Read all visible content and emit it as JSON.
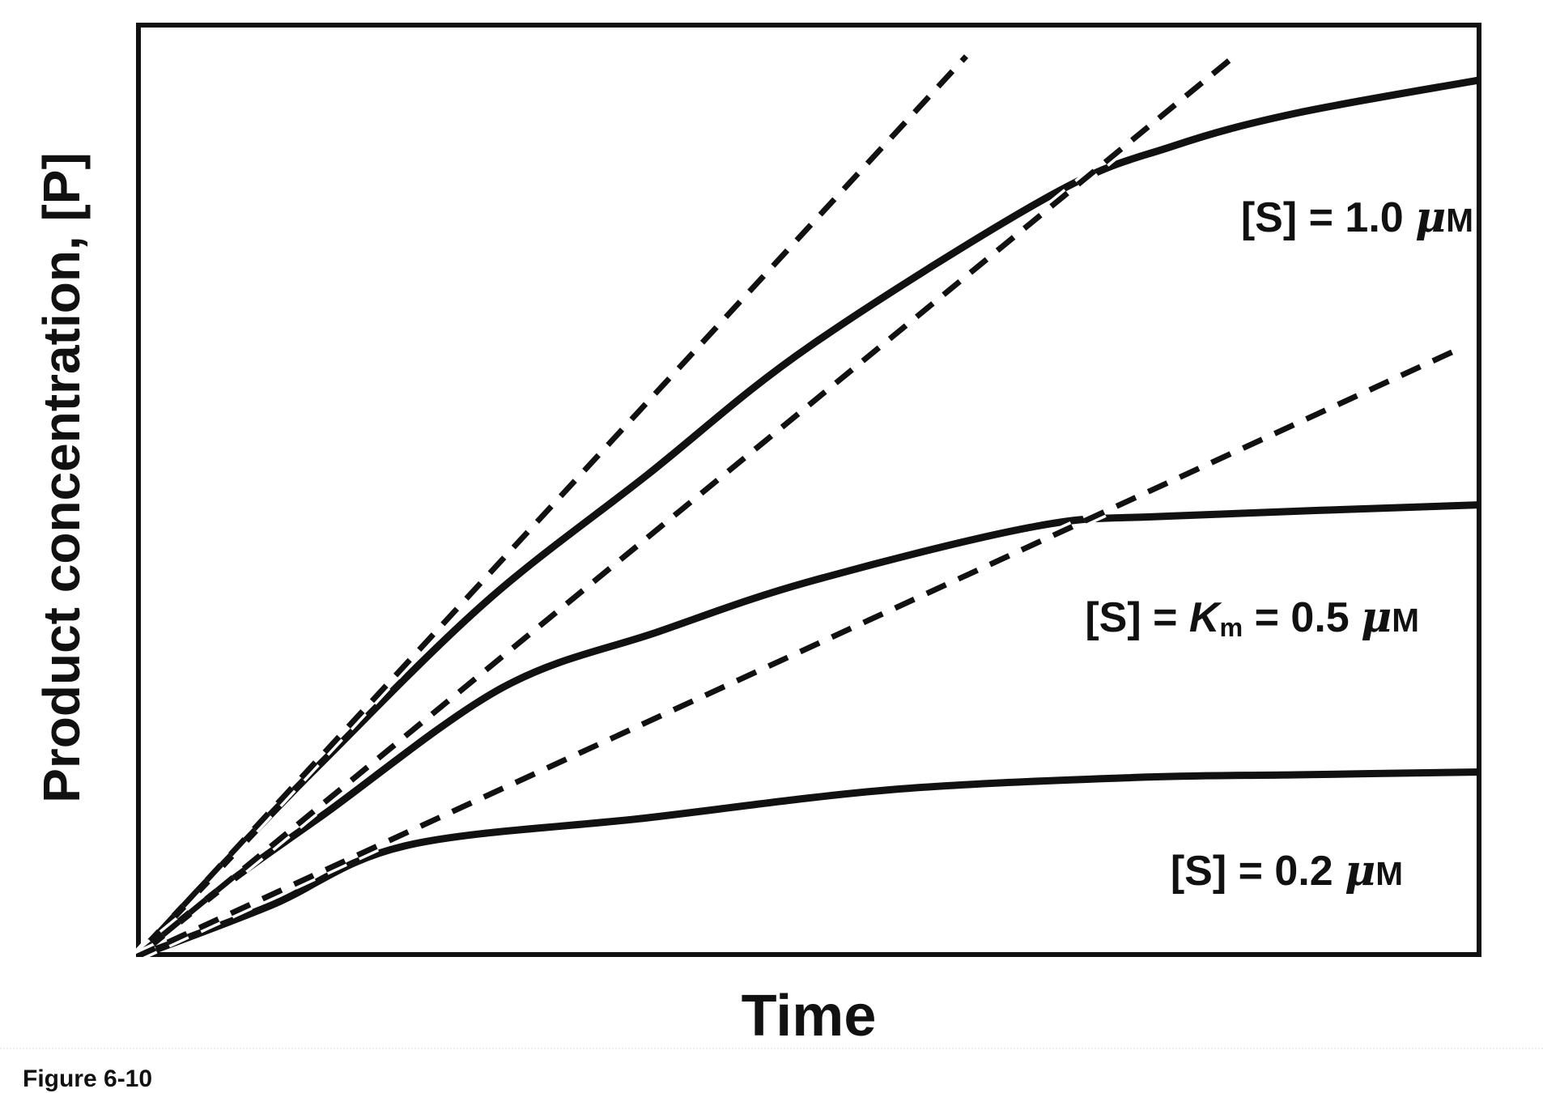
{
  "figure": {
    "caption": "Figure 6-10",
    "x_axis_label": "Time",
    "y_axis_label": "Product concentration, [P]"
  },
  "labels": {
    "s10": {
      "pre": "[S] = 1.0 ",
      "mu": "μ",
      "M": "M"
    },
    "s05": {
      "pre": "[S] = ",
      "K": "K",
      "sub": "m",
      "mid": " = 0.5 ",
      "mu": "μ",
      "M": "M"
    },
    "s02": {
      "pre": "[S] = 0.2 ",
      "mu": "μ",
      "M": "M"
    }
  },
  "colors": {
    "ink": "#111111",
    "background": "#ffffff",
    "artifact_line": "#ececec"
  },
  "chart_data": {
    "type": "line",
    "title": "",
    "xlabel": "Time",
    "ylabel": "Product concentration, [P]",
    "axes": {
      "x": {
        "label": "Time",
        "ticks": [],
        "range": [
          0,
          10
        ],
        "unit": "arbitrary (no tick marks shown)"
      },
      "y": {
        "label": "Product concentration, [P]",
        "ticks": [],
        "range": [
          0,
          1
        ],
        "unit": "arbitrary fraction of plot height (no tick marks shown)"
      }
    },
    "grid": false,
    "legend_position": "labels placed next to curves inside plot",
    "t_max": 10,
    "P_max": 1,
    "series": [
      {
        "id": "s10",
        "label": "[S] = 1.0 μM",
        "substrate_uM": 1.0,
        "line_style": "solid",
        "relative_initial_velocity": 1.0,
        "t": [
          0,
          0.7,
          1.4,
          2.6,
          3.8,
          5.01,
          6.81,
          7.71,
          8.62,
          10
        ],
        "P": [
          0,
          0.107,
          0.211,
          0.38,
          0.516,
          0.654,
          0.816,
          0.868,
          0.903,
          0.939
        ]
      },
      {
        "id": "s05",
        "label": "[S] = Km = 0.5 μM",
        "substrate_uM": 0.5,
        "line_style": "solid",
        "relative_initial_velocity": 0.76,
        "t": [
          0,
          0.7,
          1.4,
          2.72,
          3.88,
          5.01,
          6.69,
          7.71,
          10
        ],
        "P": [
          0,
          0.081,
          0.153,
          0.288,
          0.348,
          0.402,
          0.461,
          0.472,
          0.484
        ]
      },
      {
        "id": "s02",
        "label": "[S] = 0.2 μM",
        "substrate_uM": 0.2,
        "line_style": "solid",
        "relative_initial_velocity": 0.42,
        "t": [
          0,
          1.0,
          2.0,
          3.8,
          5.61,
          7.41,
          8.62,
          10
        ],
        "P": [
          0,
          0.055,
          0.119,
          0.149,
          0.179,
          0.192,
          0.195,
          0.198
        ]
      }
    ],
    "tangents": [
      {
        "id": "s10",
        "meaning": "initial-velocity (v0) tangent for [S] = 1.0 μM",
        "line_style": "dashed",
        "t": [
          0,
          6.17
        ],
        "P": [
          0,
          0.964
        ]
      },
      {
        "id": "s05",
        "meaning": "initial-velocity (v0) tangent for [S] = Km = 0.5 μM",
        "line_style": "dashed",
        "t": [
          0,
          8.18
        ],
        "P": [
          0,
          0.966
        ]
      },
      {
        "id": "s02",
        "meaning": "initial-velocity (v0) tangent for [S] = 0.2 μM",
        "line_style": "dashed",
        "t": [
          0,
          9.85
        ],
        "P": [
          0,
          0.652
        ]
      }
    ]
  }
}
